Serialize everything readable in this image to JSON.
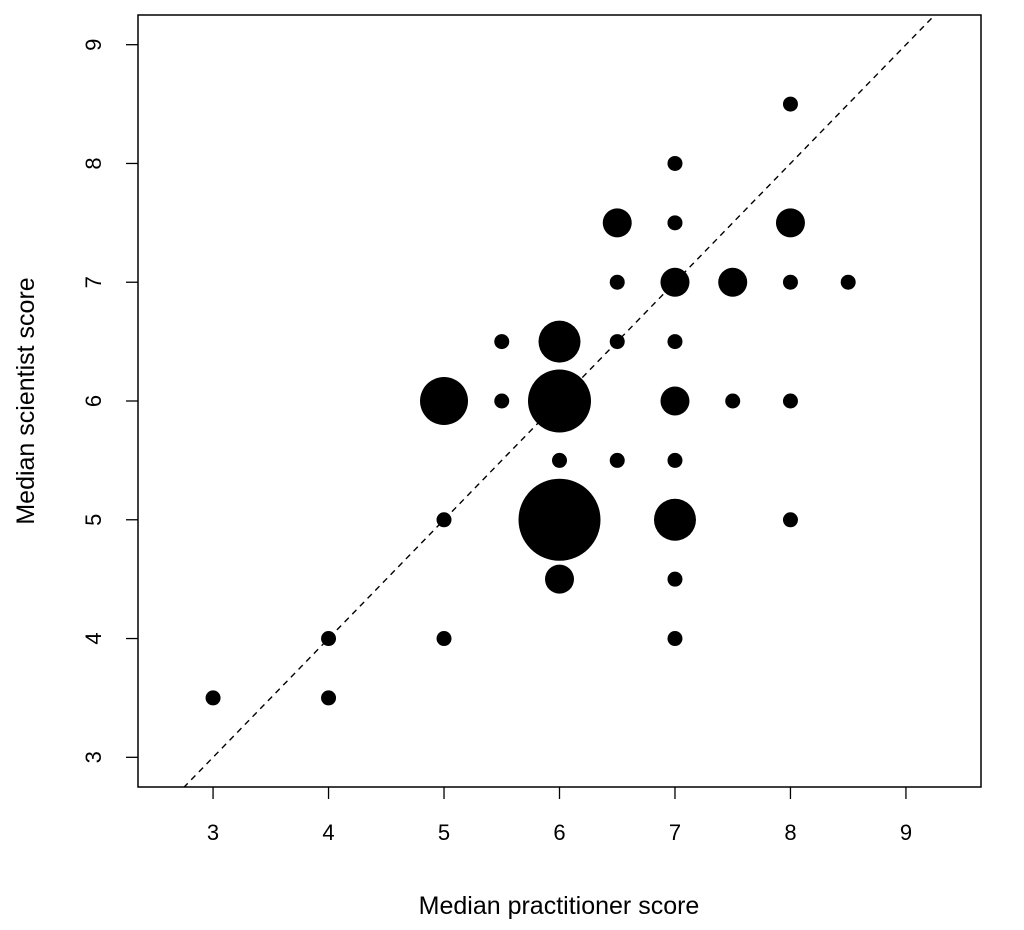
{
  "chart_data": {
    "type": "scatter",
    "title": "",
    "xlabel": "Median practitioner score",
    "ylabel": "Median scientist score",
    "xlim": [
      2.35,
      9.65
    ],
    "ylim": [
      2.75,
      9.25
    ],
    "x_ticks": [
      "3",
      "4",
      "5",
      "6",
      "7",
      "8",
      "9"
    ],
    "y_ticks": [
      "3",
      "4",
      "5",
      "6",
      "7",
      "8",
      "9"
    ],
    "grid": false,
    "legend": "none",
    "reference_line": {
      "type": "identity",
      "style": "dashed"
    },
    "marker_color": "#000000",
    "size_levels": {
      "1": "smallest",
      "2": "small",
      "3": "medium",
      "4": "large",
      "5": "largest",
      "6": "extra-large"
    },
    "points": [
      {
        "x": 3,
        "y": 3.5,
        "size": 1
      },
      {
        "x": 4,
        "y": 3.5,
        "size": 1
      },
      {
        "x": 4,
        "y": 4,
        "size": 1
      },
      {
        "x": 5,
        "y": 4,
        "size": 1
      },
      {
        "x": 5,
        "y": 5,
        "size": 1
      },
      {
        "x": 5,
        "y": 6,
        "size": 4
      },
      {
        "x": 5.5,
        "y": 6,
        "size": 1
      },
      {
        "x": 5.5,
        "y": 6.5,
        "size": 1
      },
      {
        "x": 6,
        "y": 4.5,
        "size": 2
      },
      {
        "x": 6,
        "y": 5,
        "size": 6
      },
      {
        "x": 6,
        "y": 5.5,
        "size": 1
      },
      {
        "x": 6,
        "y": 6,
        "size": 5
      },
      {
        "x": 6,
        "y": 6.5,
        "size": 3
      },
      {
        "x": 6.5,
        "y": 5.5,
        "size": 1
      },
      {
        "x": 6.5,
        "y": 6.5,
        "size": 1
      },
      {
        "x": 6.5,
        "y": 7,
        "size": 1
      },
      {
        "x": 6.5,
        "y": 7.5,
        "size": 2
      },
      {
        "x": 7,
        "y": 4,
        "size": 1
      },
      {
        "x": 7,
        "y": 4.5,
        "size": 1
      },
      {
        "x": 7,
        "y": 5,
        "size": 3
      },
      {
        "x": 7,
        "y": 5.5,
        "size": 1
      },
      {
        "x": 7,
        "y": 6,
        "size": 2
      },
      {
        "x": 7,
        "y": 6.5,
        "size": 1
      },
      {
        "x": 7,
        "y": 7,
        "size": 2
      },
      {
        "x": 7,
        "y": 7.5,
        "size": 1
      },
      {
        "x": 7,
        "y": 8,
        "size": 1
      },
      {
        "x": 7.5,
        "y": 6,
        "size": 1
      },
      {
        "x": 7.5,
        "y": 7,
        "size": 2
      },
      {
        "x": 8,
        "y": 5,
        "size": 1
      },
      {
        "x": 8,
        "y": 6,
        "size": 1
      },
      {
        "x": 8,
        "y": 7,
        "size": 1
      },
      {
        "x": 8,
        "y": 7.5,
        "size": 2
      },
      {
        "x": 8,
        "y": 8.5,
        "size": 1
      },
      {
        "x": 8.5,
        "y": 7,
        "size": 1
      }
    ]
  }
}
